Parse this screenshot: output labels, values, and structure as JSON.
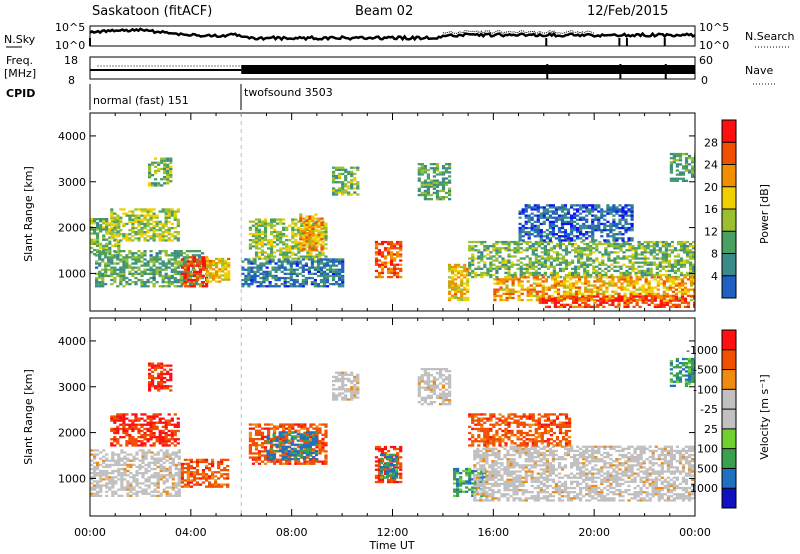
{
  "header": {
    "station": "Saskatoon (fitACF)",
    "beam": "Beam 02",
    "date": "12/Feb/2015"
  },
  "status_panel": {
    "nsky_label": "N.Sky",
    "nsky_tick_top": "10^5",
    "nsky_tick_bottom": "10^0",
    "nsearch_label": "N.Search",
    "nsearch_tick_top": "10^5",
    "nsearch_tick_bottom": "10^0",
    "freq_label_1": "Freq.",
    "freq_label_2": "[MHz]",
    "freq_tick_top": "18",
    "freq_tick_bottom": "8",
    "nave_label": "Nave",
    "nave_tick_top": "60",
    "nave_tick_bottom": "0",
    "cpid_label": "CPID",
    "cpid_1": "normal (fast) 151",
    "cpid_2": "twofsound 3503"
  },
  "colors": {
    "power": [
      "#1010ff",
      "#2060c0",
      "#3a8a8a",
      "#4aa060",
      "#9ac030",
      "#f0d000",
      "#f09000",
      "#f05000",
      "#ff1010"
    ],
    "velocity": [
      "#ff1010",
      "#f05000",
      "#f08a10",
      "#c0c0c0",
      "#c0c0c0",
      "#70d030",
      "#3aa050",
      "#2070c0",
      "#1010c0"
    ],
    "ground_scatter": "#c0c0c0"
  },
  "chart_data": [
    {
      "type": "heatmap",
      "name": "power",
      "ylabel": "Slant Range [km]",
      "xlabel": "Time UT",
      "x_ticks": [
        "00:00",
        "04:00",
        "08:00",
        "12:00",
        "16:00",
        "20:00",
        "00:00"
      ],
      "y_ticks": [
        1000,
        2000,
        3000,
        4000
      ],
      "ylim": [
        180,
        4500
      ],
      "xlim_hours": [
        0,
        24
      ],
      "colorbar_label": "Power [dB]",
      "colorbar_ticks": [
        4,
        8,
        12,
        16,
        20,
        24,
        28
      ],
      "colorbar_range": [
        0,
        32
      ],
      "regions": [
        {
          "t0": 0.0,
          "t1": 1.2,
          "r0": 1400,
          "r1": 2200,
          "v": 14
        },
        {
          "t0": 0.2,
          "t1": 4.5,
          "r0": 700,
          "r1": 1500,
          "v": 12
        },
        {
          "t0": 0.8,
          "t1": 3.5,
          "r0": 1700,
          "r1": 2400,
          "v": 16
        },
        {
          "t0": 2.3,
          "t1": 3.2,
          "r0": 2900,
          "r1": 3500,
          "v": 14
        },
        {
          "t0": 3.6,
          "t1": 4.6,
          "r0": 700,
          "r1": 1350,
          "v": 28
        },
        {
          "t0": 4.6,
          "t1": 5.5,
          "r0": 800,
          "r1": 1300,
          "v": 20
        },
        {
          "t0": 6.3,
          "t1": 9.4,
          "r0": 1300,
          "r1": 2200,
          "v": 16
        },
        {
          "t0": 8.3,
          "t1": 9.2,
          "r0": 1500,
          "r1": 2300,
          "v": 22
        },
        {
          "t0": 6.0,
          "t1": 10.0,
          "r0": 700,
          "r1": 1300,
          "v": 8
        },
        {
          "t0": 9.6,
          "t1": 10.6,
          "r0": 2700,
          "r1": 3300,
          "v": 14
        },
        {
          "t0": 11.3,
          "t1": 12.3,
          "r0": 900,
          "r1": 1700,
          "v": 26
        },
        {
          "t0": 13.0,
          "t1": 14.3,
          "r0": 2600,
          "r1": 3400,
          "v": 12
        },
        {
          "t0": 14.2,
          "t1": 15.0,
          "r0": 400,
          "r1": 1200,
          "v": 20
        },
        {
          "t0": 15.0,
          "t1": 24.0,
          "r0": 900,
          "r1": 1700,
          "v": 14
        },
        {
          "t0": 16.0,
          "t1": 24.0,
          "r0": 400,
          "r1": 900,
          "v": 22
        },
        {
          "t0": 17.8,
          "t1": 24.0,
          "r0": 250,
          "r1": 500,
          "v": 28
        },
        {
          "t0": 17.0,
          "t1": 21.5,
          "r0": 1700,
          "r1": 2500,
          "v": 6
        },
        {
          "t0": 23.0,
          "t1": 24.0,
          "r0": 3000,
          "r1": 3600,
          "v": 12
        }
      ]
    },
    {
      "type": "heatmap",
      "name": "velocity",
      "ylabel": "Slant Range [km]",
      "xlabel": "Time UT",
      "x_ticks": [
        "00:00",
        "04:00",
        "08:00",
        "12:00",
        "16:00",
        "20:00",
        "00:00"
      ],
      "y_ticks": [
        1000,
        2000,
        3000,
        4000
      ],
      "ylim": [
        180,
        4500
      ],
      "xlim_hours": [
        0,
        24
      ],
      "colorbar_label": "Velocity [m s⁻¹]",
      "colorbar_ticks": [
        "1000",
        "500",
        "100",
        "25",
        "-25",
        "-100",
        "-500",
        "-1000"
      ],
      "regions": [
        {
          "t0": 0.0,
          "t1": 3.5,
          "r0": 600,
          "r1": 1600,
          "v": "gs"
        },
        {
          "t0": 0.8,
          "t1": 3.5,
          "r0": 1700,
          "r1": 2400,
          "v": -300
        },
        {
          "t0": 2.3,
          "t1": 3.2,
          "r0": 2900,
          "r1": 3500,
          "v": -300
        },
        {
          "t0": 3.6,
          "t1": 5.5,
          "r0": 800,
          "r1": 1400,
          "v": -200
        },
        {
          "t0": 6.3,
          "t1": 9.4,
          "r0": 1300,
          "r1": 2200,
          "v": -200
        },
        {
          "t0": 7.0,
          "t1": 9.0,
          "r0": 1400,
          "r1": 2000,
          "v": 300
        },
        {
          "t0": 9.6,
          "t1": 10.6,
          "r0": 2700,
          "r1": 3300,
          "v": "gs"
        },
        {
          "t0": 11.3,
          "t1": 12.3,
          "r0": 900,
          "r1": 1700,
          "v": -300
        },
        {
          "t0": 11.5,
          "t1": 12.2,
          "r0": 1000,
          "r1": 1500,
          "v": 200
        },
        {
          "t0": 13.0,
          "t1": 14.3,
          "r0": 2600,
          "r1": 3400,
          "v": "gs"
        },
        {
          "t0": 14.4,
          "t1": 15.6,
          "r0": 600,
          "r1": 1200,
          "v": 200
        },
        {
          "t0": 15.2,
          "t1": 24.0,
          "r0": 500,
          "r1": 1700,
          "v": "gs"
        },
        {
          "t0": 15.0,
          "t1": 19.0,
          "r0": 1700,
          "r1": 2400,
          "v": -200
        },
        {
          "t0": 23.0,
          "t1": 24.0,
          "r0": 3000,
          "r1": 3600,
          "v": 200
        }
      ]
    }
  ]
}
